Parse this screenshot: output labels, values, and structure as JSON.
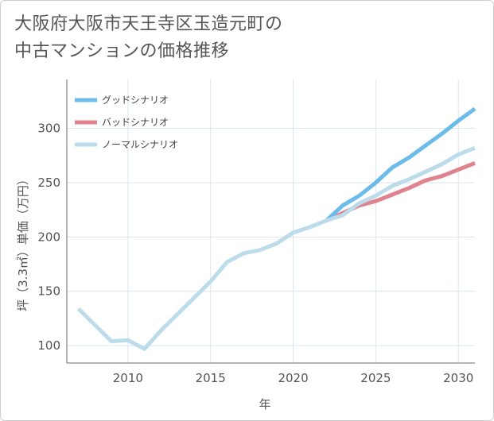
{
  "title_lines": [
    "大阪府大阪市天王寺区玉造元町の",
    "中古マンションの価格推移"
  ],
  "chart_data": {
    "type": "line",
    "title": "大阪府大阪市天王寺区玉造元町の中古マンションの価格推移",
    "xlabel": "年",
    "ylabel": "坪（3.3㎡）単価（万円）",
    "xlim": [
      2006.3,
      2031.0
    ],
    "ylim": [
      84,
      345
    ],
    "xticks": [
      2010,
      2015,
      2020,
      2025,
      2030
    ],
    "yticks": [
      100,
      150,
      200,
      250,
      300
    ],
    "legend_position": "top-left",
    "series": [
      {
        "name": "グッドシナリオ",
        "color": "#6bbbeb",
        "x": [
          2022,
          2023,
          2024,
          2025,
          2026,
          2027,
          2028,
          2029,
          2030,
          2031
        ],
        "y": [
          215,
          229,
          238,
          250,
          264,
          273,
          284,
          295,
          307,
          318
        ]
      },
      {
        "name": "バッドシナリオ",
        "color": "#e0838f",
        "x": [
          2022,
          2023,
          2024,
          2025,
          2026,
          2027,
          2028,
          2029,
          2030,
          2031
        ],
        "y": [
          215,
          222,
          229,
          233,
          239,
          245,
          252,
          256,
          262,
          268
        ]
      },
      {
        "name": "ノーマルシナリオ",
        "color": "#bcdcec",
        "x": [
          2007,
          2008,
          2009,
          2010,
          2011,
          2012,
          2013,
          2014,
          2015,
          2016,
          2017,
          2018,
          2019,
          2020,
          2021,
          2022,
          2023,
          2024,
          2025,
          2026,
          2027,
          2028,
          2029,
          2030,
          2031
        ],
        "y": [
          134,
          119,
          104,
          105,
          97,
          114,
          129,
          144,
          159,
          177,
          185,
          188,
          194,
          204,
          209,
          215,
          220,
          231,
          238,
          247,
          253,
          260,
          267,
          276,
          282
        ]
      }
    ]
  }
}
